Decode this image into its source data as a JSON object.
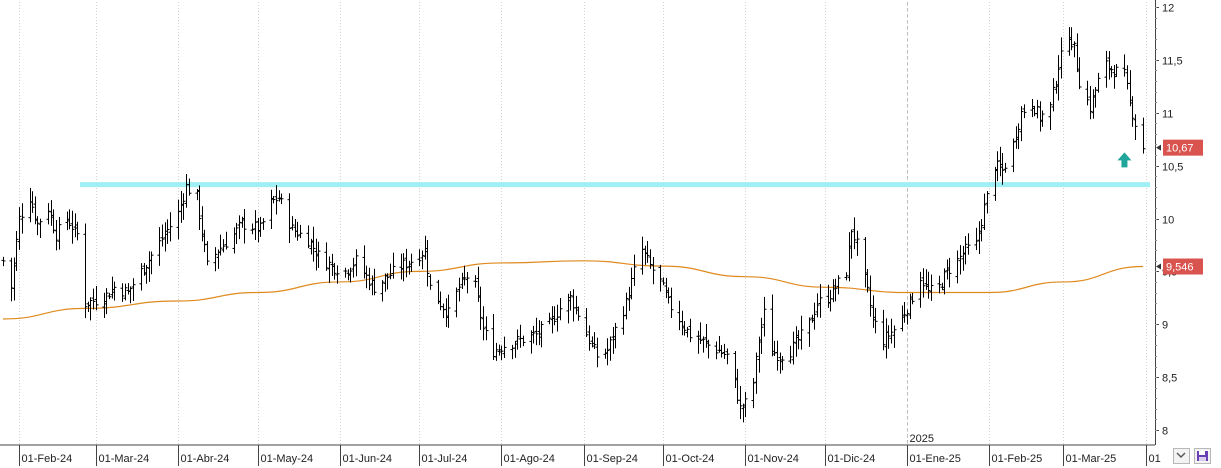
{
  "chart_data": {
    "type": "ohlc",
    "title": "",
    "xlabel": "",
    "ylabel": "",
    "ylim": [
      7.9,
      12.05
    ],
    "y_ticks": [
      "12",
      "11,5",
      "11",
      "10,5",
      "10",
      "9,5",
      "9",
      "8,5",
      "8"
    ],
    "y_tick_values": [
      12,
      11.5,
      11,
      10.5,
      10,
      9.5,
      9,
      8.5,
      8
    ],
    "x_range": [
      "2024-01-26",
      "2025-03-31"
    ],
    "x_ticks": [
      {
        "date": "2024-02-01",
        "label": "01-Feb-24"
      },
      {
        "date": "2024-03-01",
        "label": "01-Mar-24"
      },
      {
        "date": "2024-04-01",
        "label": "01-Abr-24"
      },
      {
        "date": "2024-05-01",
        "label": "01-May-24"
      },
      {
        "date": "2024-06-01",
        "label": "01-Jun-24"
      },
      {
        "date": "2024-07-01",
        "label": "01-Jul-24"
      },
      {
        "date": "2024-08-01",
        "label": "01-Ago-24"
      },
      {
        "date": "2024-09-01",
        "label": "01-Sep-24"
      },
      {
        "date": "2024-10-01",
        "label": "01-Oct-24"
      },
      {
        "date": "2024-11-01",
        "label": "01-Nov-24"
      },
      {
        "date": "2024-12-01",
        "label": "01-Dic-24"
      },
      {
        "date": "2025-01-01",
        "label": "01-Ene-25"
      },
      {
        "date": "2025-02-01",
        "label": "01-Feb-25"
      },
      {
        "date": "2025-03-01",
        "label": "01-Mar-25"
      },
      {
        "date": "2025-04-01",
        "label": "01"
      }
    ],
    "year_marker": {
      "date": "2025-01-01",
      "label": "2025"
    },
    "price_path": [
      [
        "2024-01-26",
        9.6
      ],
      [
        "2024-01-29",
        9.35
      ],
      [
        "2024-02-01",
        10.0
      ],
      [
        "2024-02-05",
        10.2
      ],
      [
        "2024-02-08",
        9.95
      ],
      [
        "2024-02-12",
        10.1
      ],
      [
        "2024-02-15",
        9.85
      ],
      [
        "2024-02-19",
        10.0
      ],
      [
        "2024-02-23",
        9.85
      ],
      [
        "2024-02-26",
        9.2
      ],
      [
        "2024-03-04",
        9.25
      ],
      [
        "2024-03-08",
        9.35
      ],
      [
        "2024-03-13",
        9.3
      ],
      [
        "2024-03-18",
        9.5
      ],
      [
        "2024-03-22",
        9.65
      ],
      [
        "2024-03-27",
        9.85
      ],
      [
        "2024-04-01",
        10.05
      ],
      [
        "2024-04-04",
        10.3
      ],
      [
        "2024-04-08",
        10.2
      ],
      [
        "2024-04-12",
        9.55
      ],
      [
        "2024-04-16",
        9.7
      ],
      [
        "2024-04-22",
        9.85
      ],
      [
        "2024-04-25",
        9.95
      ],
      [
        "2024-05-02",
        9.9
      ],
      [
        "2024-05-06",
        10.15
      ],
      [
        "2024-05-09",
        10.2
      ],
      [
        "2024-05-14",
        9.9
      ],
      [
        "2024-05-20",
        9.8
      ],
      [
        "2024-05-24",
        9.65
      ],
      [
        "2024-05-29",
        9.55
      ],
      [
        "2024-06-03",
        9.5
      ],
      [
        "2024-06-07",
        9.6
      ],
      [
        "2024-06-11",
        9.45
      ],
      [
        "2024-06-14",
        9.35
      ],
      [
        "2024-06-19",
        9.45
      ],
      [
        "2024-06-24",
        9.55
      ],
      [
        "2024-06-28",
        9.6
      ],
      [
        "2024-07-03",
        9.7
      ],
      [
        "2024-07-05",
        9.35
      ],
      [
        "2024-07-09",
        9.2
      ],
      [
        "2024-07-12",
        9.1
      ],
      [
        "2024-07-16",
        9.35
      ],
      [
        "2024-07-19",
        9.45
      ],
      [
        "2024-07-22",
        9.35
      ],
      [
        "2024-07-25",
        8.95
      ],
      [
        "2024-07-29",
        8.75
      ],
      [
        "2024-08-02",
        8.8
      ],
      [
        "2024-08-08",
        8.85
      ],
      [
        "2024-08-14",
        8.9
      ],
      [
        "2024-08-19",
        9.0
      ],
      [
        "2024-08-23",
        9.15
      ],
      [
        "2024-08-27",
        9.25
      ],
      [
        "2024-08-30",
        9.1
      ],
      [
        "2024-09-03",
        8.85
      ],
      [
        "2024-09-06",
        8.7
      ],
      [
        "2024-09-10",
        8.75
      ],
      [
        "2024-09-13",
        8.95
      ],
      [
        "2024-09-17",
        9.2
      ],
      [
        "2024-09-20",
        9.5
      ],
      [
        "2024-09-23",
        9.7
      ],
      [
        "2024-09-26",
        9.55
      ],
      [
        "2024-09-30",
        9.4
      ],
      [
        "2024-10-03",
        9.2
      ],
      [
        "2024-10-07",
        9.05
      ],
      [
        "2024-10-11",
        8.9
      ],
      [
        "2024-10-15",
        8.85
      ],
      [
        "2024-10-18",
        8.8
      ],
      [
        "2024-10-22",
        8.75
      ],
      [
        "2024-10-25",
        8.7
      ],
      [
        "2024-10-28",
        8.45
      ],
      [
        "2024-10-30",
        8.2
      ],
      [
        "2024-11-01",
        8.25
      ],
      [
        "2024-11-04",
        8.45
      ],
      [
        "2024-11-06",
        8.85
      ],
      [
        "2024-11-08",
        9.1
      ],
      [
        "2024-11-11",
        8.75
      ],
      [
        "2024-11-14",
        8.7
      ],
      [
        "2024-11-18",
        8.75
      ],
      [
        "2024-11-21",
        8.85
      ],
      [
        "2024-11-25",
        9.0
      ],
      [
        "2024-11-28",
        9.2
      ],
      [
        "2024-12-02",
        9.25
      ],
      [
        "2024-12-05",
        9.35
      ],
      [
        "2024-12-09",
        9.5
      ],
      [
        "2024-12-11",
        9.9
      ],
      [
        "2024-12-13",
        9.75
      ],
      [
        "2024-12-17",
        9.3
      ],
      [
        "2024-12-19",
        9.05
      ],
      [
        "2024-12-23",
        8.85
      ],
      [
        "2024-12-27",
        8.95
      ],
      [
        "2025-01-02",
        9.2
      ],
      [
        "2025-01-06",
        9.45
      ],
      [
        "2025-01-09",
        9.3
      ],
      [
        "2025-01-13",
        9.35
      ],
      [
        "2025-01-16",
        9.5
      ],
      [
        "2025-01-20",
        9.6
      ],
      [
        "2025-01-23",
        9.7
      ],
      [
        "2025-01-27",
        9.75
      ],
      [
        "2025-01-30",
        10.1
      ],
      [
        "2025-02-03",
        10.5
      ],
      [
        "2025-02-06",
        10.45
      ],
      [
        "2025-02-10",
        10.7
      ],
      [
        "2025-02-13",
        11.0
      ],
      [
        "2025-02-17",
        11.1
      ],
      [
        "2025-02-20",
        10.95
      ],
      [
        "2025-02-24",
        11.05
      ],
      [
        "2025-02-27",
        11.45
      ],
      [
        "2025-03-03",
        11.75
      ],
      [
        "2025-03-05",
        11.6
      ],
      [
        "2025-03-07",
        11.3
      ],
      [
        "2025-03-11",
        11.05
      ],
      [
        "2025-03-14",
        11.3
      ],
      [
        "2025-03-17",
        11.45
      ],
      [
        "2025-03-20",
        11.4
      ],
      [
        "2025-03-24",
        11.35
      ],
      [
        "2025-03-26",
        11.1
      ],
      [
        "2025-03-28",
        10.9
      ],
      [
        "2025-03-31",
        10.67
      ]
    ],
    "moving_average": {
      "color": "#e08a1e",
      "values": [
        [
          "2024-01-26",
          9.05
        ],
        [
          "2024-02-26",
          9.15
        ],
        [
          "2024-04-01",
          9.22
        ],
        [
          "2024-05-01",
          9.3
        ],
        [
          "2024-06-01",
          9.4
        ],
        [
          "2024-07-01",
          9.5
        ],
        [
          "2024-08-01",
          9.58
        ],
        [
          "2024-09-01",
          9.6
        ],
        [
          "2024-10-01",
          9.55
        ],
        [
          "2024-11-01",
          9.45
        ],
        [
          "2024-12-01",
          9.35
        ],
        [
          "2025-01-01",
          9.3
        ],
        [
          "2025-02-01",
          9.3
        ],
        [
          "2025-03-01",
          9.4
        ],
        [
          "2025-03-31",
          9.546
        ]
      ]
    },
    "resistance_line": {
      "value": 10.32,
      "color": "#9ff0f4"
    },
    "signal_arrow": {
      "date": "2025-03-24",
      "value": 10.55,
      "direction": "up",
      "color": "#1fa59a"
    },
    "last_price": {
      "value": 10.67,
      "label": "10,67",
      "color": "#d9534f"
    },
    "ma_price": {
      "value": 9.546,
      "label": "9,546",
      "color": "#d9534f"
    },
    "bar_color": "#000000",
    "grid": "vertical"
  }
}
